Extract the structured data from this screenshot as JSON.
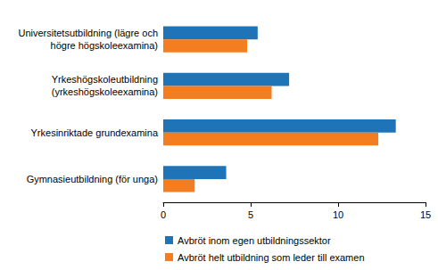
{
  "chart_data": {
    "type": "bar",
    "orientation": "horizontal",
    "categories": [
      "Universitetsutbildning (lägre och\nhögre högskoleexamina)",
      "Yrkeshögskoleutbildning\n(yrkeshögskoleexamina)",
      "Yrkesinriktade grundexamina",
      "Gymnasieutbildning (för unga)"
    ],
    "series": [
      {
        "name": "Avbröt inom egen utbildningssektor",
        "color": "#1f73b7",
        "values": [
          5.4,
          7.2,
          13.3,
          3.6
        ]
      },
      {
        "name": "Avbröt helt utbildning som leder till examen",
        "color": "#f47d20",
        "values": [
          4.8,
          6.2,
          12.3,
          1.8
        ]
      }
    ],
    "xlim": [
      0,
      15
    ],
    "xticks": [
      0,
      5,
      10,
      15
    ],
    "grid": false,
    "legend": "bottom"
  }
}
